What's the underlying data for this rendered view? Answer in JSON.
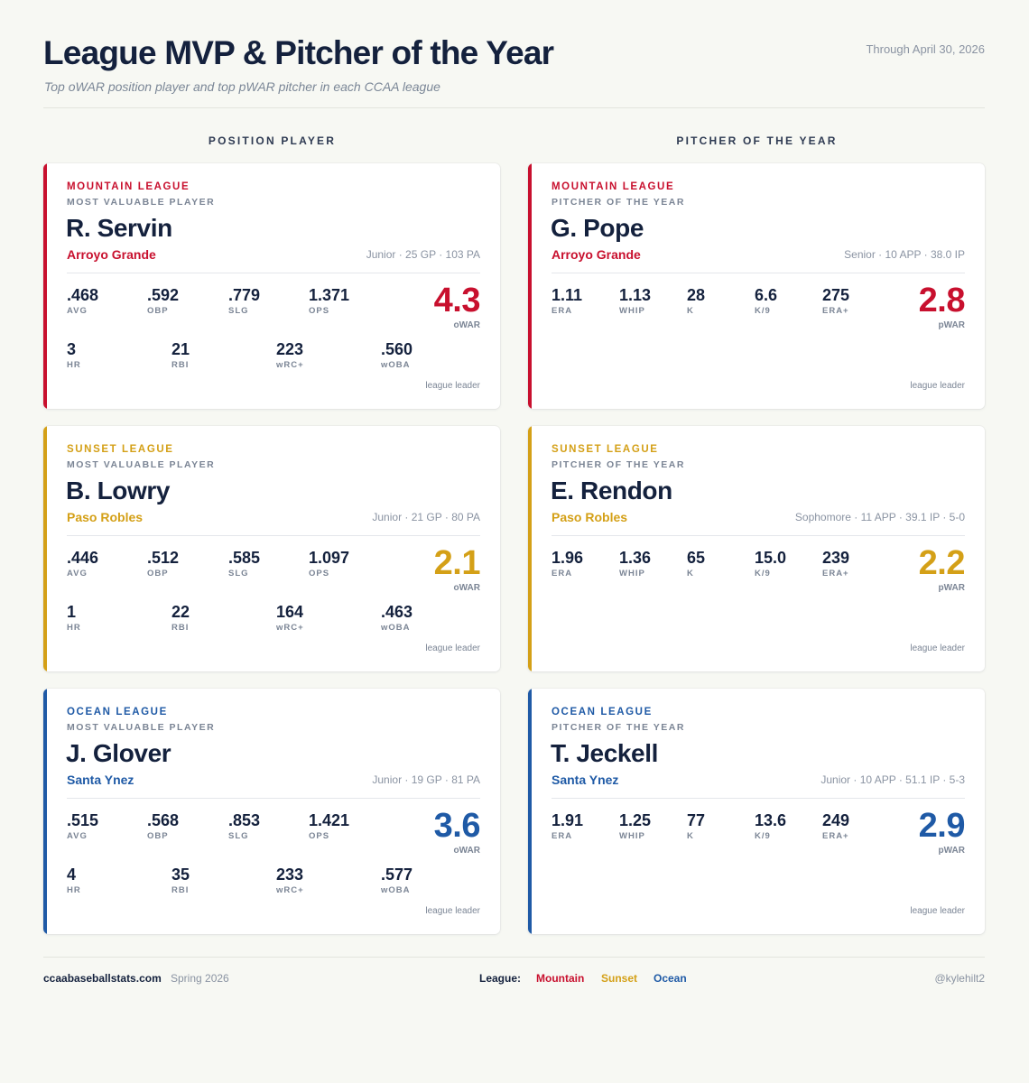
{
  "header": {
    "title": "League MVP & Pitcher of the Year",
    "subtitle": "Top oWAR position player and top pWAR pitcher in each CCAA league",
    "as_of": "Through April 30, 2026"
  },
  "columns": {
    "position": "POSITION PLAYER",
    "pitcher": "PITCHER OF THE YEAR"
  },
  "colors": {
    "mountain": "#c8102e",
    "sunset": "#d4a017",
    "ocean": "#1f5aa6"
  },
  "position_cards": [
    {
      "league": "MOUNTAIN LEAGUE",
      "award": "MOST VALUABLE PLAYER",
      "name": "R. Servin",
      "team": "Arroyo Grande",
      "meta": "Junior · 25 GP · 103 PA",
      "row1": [
        {
          "v": ".468",
          "l": "AVG"
        },
        {
          "v": ".592",
          "l": "OBP"
        },
        {
          "v": ".779",
          "l": "SLG"
        },
        {
          "v": "1.371",
          "l": "OPS"
        }
      ],
      "row2": [
        {
          "v": "3",
          "l": "HR"
        },
        {
          "v": "21",
          "l": "RBI"
        },
        {
          "v": "223",
          "l": "wRC+"
        },
        {
          "v": ".560",
          "l": "wOBA"
        }
      ],
      "war": "4.3",
      "war_label": "oWAR",
      "leader": "league leader"
    },
    {
      "league": "SUNSET LEAGUE",
      "award": "MOST VALUABLE PLAYER",
      "name": "B. Lowry",
      "team": "Paso Robles",
      "meta": "Junior · 21 GP · 80 PA",
      "row1": [
        {
          "v": ".446",
          "l": "AVG"
        },
        {
          "v": ".512",
          "l": "OBP"
        },
        {
          "v": ".585",
          "l": "SLG"
        },
        {
          "v": "1.097",
          "l": "OPS"
        }
      ],
      "row2": [
        {
          "v": "1",
          "l": "HR"
        },
        {
          "v": "22",
          "l": "RBI"
        },
        {
          "v": "164",
          "l": "wRC+"
        },
        {
          "v": ".463",
          "l": "wOBA"
        }
      ],
      "war": "2.1",
      "war_label": "oWAR",
      "leader": "league leader"
    },
    {
      "league": "OCEAN LEAGUE",
      "award": "MOST VALUABLE PLAYER",
      "name": "J. Glover",
      "team": "Santa Ynez",
      "meta": "Junior · 19 GP · 81 PA",
      "row1": [
        {
          "v": ".515",
          "l": "AVG"
        },
        {
          "v": ".568",
          "l": "OBP"
        },
        {
          "v": ".853",
          "l": "SLG"
        },
        {
          "v": "1.421",
          "l": "OPS"
        }
      ],
      "row2": [
        {
          "v": "4",
          "l": "HR"
        },
        {
          "v": "35",
          "l": "RBI"
        },
        {
          "v": "233",
          "l": "wRC+"
        },
        {
          "v": ".577",
          "l": "wOBA"
        }
      ],
      "war": "3.6",
      "war_label": "oWAR",
      "leader": "league leader"
    }
  ],
  "pitcher_cards": [
    {
      "league": "MOUNTAIN LEAGUE",
      "award": "PITCHER OF THE YEAR",
      "name": "G. Pope",
      "team": "Arroyo Grande",
      "meta": "Senior · 10 APP · 38.0 IP",
      "row1": [
        {
          "v": "1.11",
          "l": "ERA"
        },
        {
          "v": "1.13",
          "l": "WHIP"
        },
        {
          "v": "28",
          "l": "K"
        },
        {
          "v": "6.6",
          "l": "K/9"
        },
        {
          "v": "275",
          "l": "ERA+"
        }
      ],
      "war": "2.8",
      "war_label": "pWAR",
      "leader": "league leader"
    },
    {
      "league": "SUNSET LEAGUE",
      "award": "PITCHER OF THE YEAR",
      "name": "E. Rendon",
      "team": "Paso Robles",
      "meta": "Sophomore · 11 APP · 39.1 IP · 5-0",
      "row1": [
        {
          "v": "1.96",
          "l": "ERA"
        },
        {
          "v": "1.36",
          "l": "WHIP"
        },
        {
          "v": "65",
          "l": "K"
        },
        {
          "v": "15.0",
          "l": "K/9"
        },
        {
          "v": "239",
          "l": "ERA+"
        }
      ],
      "war": "2.2",
      "war_label": "pWAR",
      "leader": "league leader"
    },
    {
      "league": "OCEAN LEAGUE",
      "award": "PITCHER OF THE YEAR",
      "name": "T. Jeckell",
      "team": "Santa Ynez",
      "meta": "Junior · 10 APP · 51.1 IP · 5-3",
      "row1": [
        {
          "v": "1.91",
          "l": "ERA"
        },
        {
          "v": "1.25",
          "l": "WHIP"
        },
        {
          "v": "77",
          "l": "K"
        },
        {
          "v": "13.6",
          "l": "K/9"
        },
        {
          "v": "249",
          "l": "ERA+"
        }
      ],
      "war": "2.9",
      "war_label": "pWAR",
      "leader": "league leader"
    }
  ],
  "footer": {
    "site": "ccaabaseballstats.com",
    "season": "Spring 2026",
    "legend_label": "League:",
    "legend": [
      "Mountain",
      "Sunset",
      "Ocean"
    ],
    "handle": "@kylehilt2"
  }
}
